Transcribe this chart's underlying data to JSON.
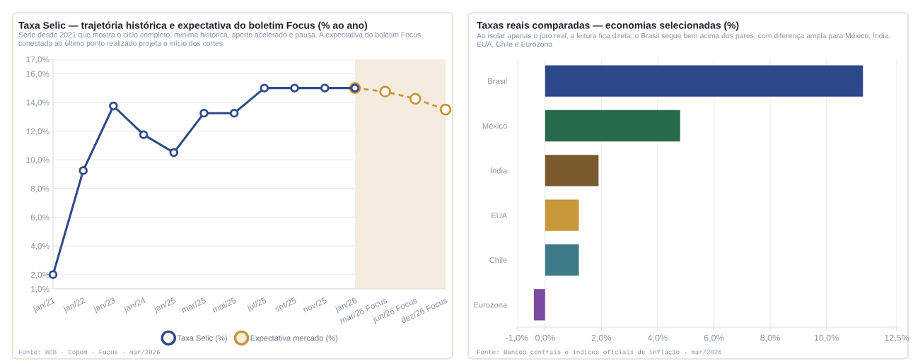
{
  "chart_data": [
    {
      "type": "line",
      "title": "Taxa Selic — trajetória histórica e expectativa do boletim Focus (% ao ano)",
      "subtitle": "Série desde 2021 que mostra o ciclo completo: mínima histórica, aperto acelerado e pausa. A expectativa do boletim Focus conectada ao último ponto realizado projeta o início dos cortes.",
      "categories": [
        "jan/21",
        "jan/22",
        "jan/23",
        "jan/24",
        "jan/25",
        "mar/25",
        "mai/25",
        "jul/25",
        "set/25",
        "nov/25",
        "jan/26",
        "mar/26 Focus",
        "jun/26 Focus",
        "dez/26 Focus"
      ],
      "series": [
        {
          "name": "Taxa Selic (%)",
          "color": "#2e4a8a",
          "line_style": "solid",
          "values": [
            2.0,
            9.25,
            13.75,
            11.75,
            10.5,
            13.25,
            13.25,
            15.0,
            15.0,
            15.0,
            15.0,
            null,
            null,
            null
          ]
        },
        {
          "name": "Expectativa mercado (%)",
          "color": "#c9963a",
          "line_style": "dashed",
          "values": [
            null,
            null,
            null,
            null,
            null,
            null,
            null,
            null,
            null,
            null,
            15.0,
            14.75,
            14.25,
            13.5
          ]
        }
      ],
      "ylim": [
        1,
        17
      ],
      "yticks": [
        {
          "value": 1,
          "label": "1,0%"
        },
        {
          "value": 2,
          "label": "2,0%"
        },
        {
          "value": 4,
          "label": "4,0%"
        },
        {
          "value": 6,
          "label": "6,0%"
        },
        {
          "value": 8,
          "label": "8,0%"
        },
        {
          "value": 10,
          "label": "10,0%"
        },
        {
          "value": 12,
          "label": "12,0%"
        },
        {
          "value": 14,
          "label": "14,0%"
        },
        {
          "value": 16,
          "label": "16,0%"
        },
        {
          "value": 17,
          "label": "17,0%"
        }
      ],
      "bands": [
        {
          "axis": "x",
          "from": "jan/26",
          "to": "dez/26 Focus",
          "label": null,
          "color": "#f5ecdf"
        }
      ],
      "grid": "y",
      "legend": "bottom",
      "marker": "circle",
      "annotations": [
        "Fonte: BCB · Copom · Focus · mar/2026"
      ]
    },
    {
      "type": "bar",
      "orientation": "horizontal",
      "title": "Taxas reais comparadas — economias selecionadas (%)",
      "subtitle": "Ao isolar apenas o juro real, a leitura fica direta: o Brasil segue bem acima dos pares, com diferença ampla para México, Índia, EUA, Chile e Eurozona",
      "categories": [
        "Brasil",
        "México",
        "Índia",
        "EUA",
        "Chile",
        "Eurozona"
      ],
      "values": [
        11.3,
        4.8,
        1.9,
        1.2,
        1.2,
        -0.4
      ],
      "colors": [
        "#2d4888",
        "#276b4c",
        "#7a5a2e",
        "#c8973a",
        "#3e7a88",
        "#7b4a9f"
      ],
      "xlim": [
        -1,
        12.5
      ],
      "xticks": [
        {
          "value": -1,
          "label": "-1,0%"
        },
        {
          "value": 0,
          "label": "0,0%"
        },
        {
          "value": 2,
          "label": "2,0%"
        },
        {
          "value": 4,
          "label": "4,0%"
        },
        {
          "value": 6,
          "label": "6,0%"
        },
        {
          "value": 8,
          "label": "8,0%"
        },
        {
          "value": 10,
          "label": "10,0%"
        },
        {
          "value": 12.5,
          "label": "12,5%"
        }
      ],
      "grid": "x",
      "legend": false,
      "annotations": [
        "Fonte: Bancos centrais e índices oficiais de inflação · mar/2026"
      ]
    }
  ]
}
